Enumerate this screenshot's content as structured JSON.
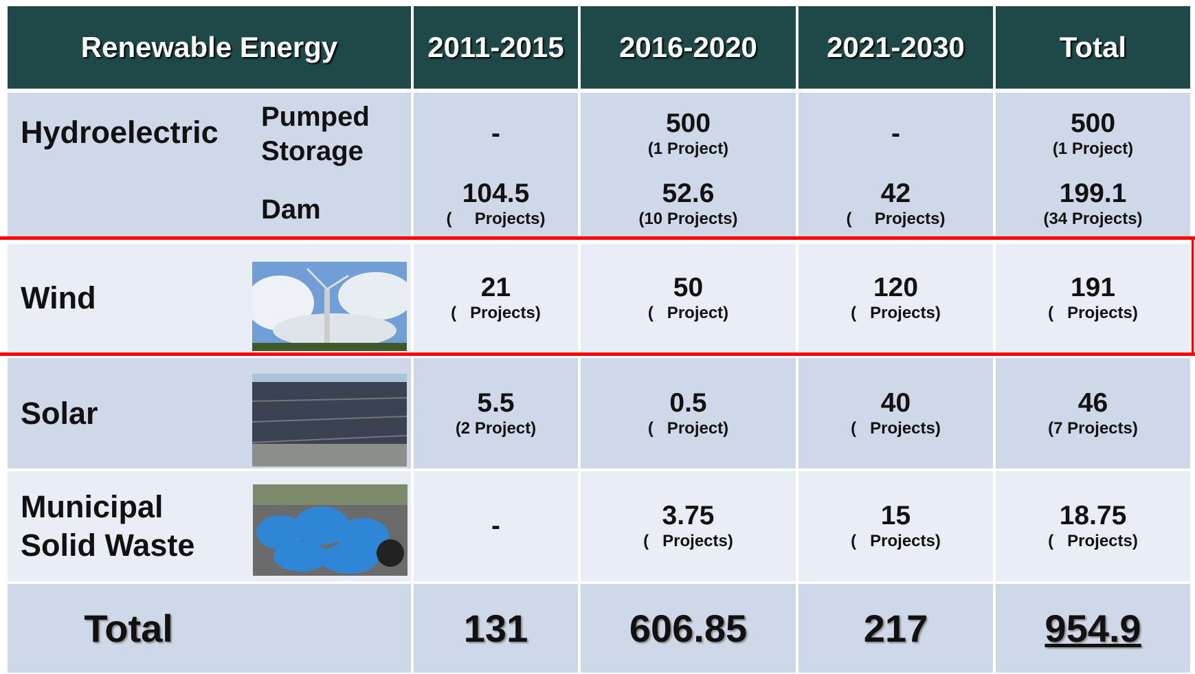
{
  "table": {
    "header": [
      "Renewable Energy",
      "2011-2015",
      "2016-2020",
      "2021-2030",
      "Total"
    ],
    "hydro": {
      "label": "Hydroelectric",
      "rows": [
        {
          "label": "Pumped Storage",
          "cells": [
            {
              "value": "-"
            },
            {
              "value": "500",
              "note": "(1 Project)"
            },
            {
              "value": "-"
            },
            {
              "value": "500",
              "note": "(1 Project)"
            }
          ]
        },
        {
          "label": "Dam",
          "cells": [
            {
              "value": "104.5",
              "note": "(     Projects)"
            },
            {
              "value": "52.6",
              "note": "(10 Projects)"
            },
            {
              "value": "42",
              "note": "(     Projects)"
            },
            {
              "value": "199.1",
              "note": "(34 Projects)"
            }
          ]
        }
      ]
    },
    "rows": [
      {
        "label": "Wind",
        "cells": [
          {
            "value": "21",
            "note": "(   Projects)"
          },
          {
            "value": "50",
            "note": "(   Project)"
          },
          {
            "value": "120",
            "note": "(   Projects)"
          },
          {
            "value": "191",
            "note": "(   Projects)"
          }
        ]
      },
      {
        "label": "Solar",
        "cells": [
          {
            "value": "5.5",
            "note": "(2 Project)"
          },
          {
            "value": "0.5",
            "note": "(   Project)"
          },
          {
            "value": "40",
            "note": "(   Projects)"
          },
          {
            "value": "46",
            "note": "(7 Projects)"
          }
        ]
      },
      {
        "label": "Municipal Solid Waste",
        "cells": [
          {
            "value": "-"
          },
          {
            "value": "3.75",
            "note": "(   Projects)"
          },
          {
            "value": "15",
            "note": "(   Projects)"
          },
          {
            "value": "18.75",
            "note": "(   Projects)"
          }
        ]
      }
    ],
    "total": {
      "label": "Total",
      "cells": [
        "131",
        "606.85",
        "217",
        "954.9"
      ]
    }
  }
}
